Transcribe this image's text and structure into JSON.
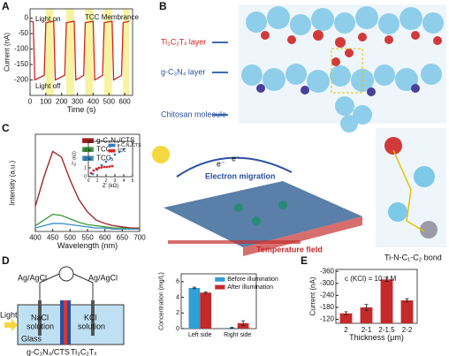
{
  "panels": {
    "labels": [
      "A",
      "B",
      "C",
      "D",
      "E"
    ]
  },
  "diagram_b": {
    "layer1": "Ti₃C₂Tₓ layer",
    "layer2": "g-C₃N₄ layer",
    "molecule": "Chitosan molecule"
  },
  "diagram_c": {
    "electron1": "e⁻",
    "electron2": "e⁻",
    "migration": "Electron migration",
    "field": "Temperature field",
    "bond": "Ti-N-C₁-C₂ bond"
  },
  "diagram_d": {
    "electrode_left": "Ag/AgCl",
    "electrode_right": "Ag/AgCl",
    "left_solution": [
      "NaCl",
      "solution"
    ],
    "right_solution": [
      "KCl",
      "solution"
    ],
    "light": "Light",
    "glass": "Glass",
    "membrane1": "g-C₃N₄/CTS",
    "membrane2": "Ti₃C₂Tₓ"
  },
  "chart_data": [
    {
      "type": "line",
      "xlabel": "Time (s)",
      "ylabel": "Current (nA)",
      "color": "#d62020",
      "annotations": [
        "Light on",
        "Light off",
        "TCC Membrance"
      ],
      "light_on": [
        [
          100,
          150
        ],
        [
          230,
          280
        ],
        [
          350,
          400
        ],
        [
          470,
          520
        ],
        [
          590,
          630
        ]
      ],
      "shade_color": "#f7f3a0",
      "x": [
        0,
        20,
        30,
        90,
        100,
        150,
        160,
        220,
        230,
        280,
        290,
        340,
        350,
        400,
        410,
        460,
        470,
        520,
        530,
        580,
        590,
        630
      ],
      "values": [
        -10,
        -12,
        -200,
        -185,
        -15,
        -10,
        -200,
        -185,
        -15,
        -10,
        -200,
        -185,
        -15,
        -10,
        -200,
        -185,
        -15,
        -10,
        -200,
        -185,
        -15,
        -10
      ],
      "xlim": [
        0,
        650
      ],
      "xticks": [
        0,
        100,
        200,
        300,
        400,
        500,
        600
      ],
      "ylim": [
        -250,
        30
      ],
      "yticks": [
        -200,
        -150,
        -100,
        -50,
        0
      ]
    },
    {
      "type": "line",
      "xlabel": "Wavelength (nm)",
      "ylabel": "Intensity (a.u.)",
      "legend": "upper right",
      "x": [
        400,
        425,
        450,
        475,
        500,
        525,
        550,
        575,
        600,
        625,
        650,
        675,
        700
      ],
      "series": [
        {
          "name": "g-C₃N₄/CTS",
          "color": "#9b1c1c",
          "values": [
            0.22,
            0.48,
            0.7,
            0.65,
            0.45,
            0.28,
            0.17,
            0.1,
            0.07,
            0.05,
            0.04,
            0.03,
            0.03
          ]
        },
        {
          "name": "TCC₁",
          "color": "#3a9a3a",
          "values": [
            0.05,
            0.1,
            0.15,
            0.14,
            0.11,
            0.08,
            0.06,
            0.05,
            0.04,
            0.03,
            0.03,
            0.02,
            0.02
          ]
        },
        {
          "name": "TCC₂",
          "color": "#3a8fc8",
          "values": [
            0.03,
            0.05,
            0.07,
            0.07,
            0.06,
            0.05,
            0.04,
            0.03,
            0.03,
            0.02,
            0.02,
            0.02,
            0.02
          ]
        }
      ],
      "xlim": [
        400,
        700
      ],
      "xticks": [
        400,
        450,
        500,
        550,
        600,
        650,
        700
      ],
      "ylim": [
        0,
        0.85
      ]
    },
    {
      "type": "scatter",
      "xlabel": "Z' (kΩ)",
      "ylabel": "-Z'' (kΩ)",
      "legend": "upper right",
      "series": [
        {
          "name": "g-C₃N₄/CTS",
          "color": "#2a7fc1",
          "x": [
            0.5,
            1,
            1.5,
            2,
            2.5,
            3,
            3.5,
            4
          ],
          "values": [
            0.3,
            0.8,
            1.3,
            1.7,
            2.1,
            2.5,
            2.8,
            3.1
          ]
        },
        {
          "name": "TCC",
          "color": "#d62020",
          "x": [
            0.3,
            0.6,
            0.9,
            1.2,
            1.5,
            1.8,
            2.1,
            2.4,
            2.7
          ],
          "values": [
            0.4,
            0.7,
            0.9,
            1,
            1.05,
            1.1,
            1.1,
            1.15,
            1.2
          ]
        }
      ],
      "xlim": [
        0,
        5
      ],
      "xticks": [
        0,
        1,
        2,
        3,
        4,
        5
      ],
      "ylim": [
        0,
        4
      ],
      "yticks": [
        0,
        1,
        2,
        3
      ]
    },
    {
      "type": "bar",
      "ylabel": "Concentration (mg/L)",
      "legend": "upper right",
      "categories": [
        "Left side",
        "Right side"
      ],
      "series": [
        {
          "name": "Before illumination",
          "color": "#2f9fd6",
          "values": [
            5.2,
            0.1
          ],
          "errors": [
            0.1,
            0.05
          ]
        },
        {
          "name": "After illumination",
          "color": "#c42a2a",
          "values": [
            4.6,
            0.7
          ],
          "errors": [
            0.1,
            0.3
          ]
        }
      ],
      "ylim": [
        0,
        7
      ],
      "yticks": [
        0,
        2,
        4,
        6
      ]
    },
    {
      "type": "bar",
      "xlabel": "Thickness (μm)",
      "ylabel": "Current (nA)",
      "annotations": [
        "c (KCl) = 10⁻² M"
      ],
      "categories": [
        "2",
        "2-1",
        "2-1.5",
        "2-2"
      ],
      "series": [
        {
          "color": "#c42a2a",
          "values": [
            -150,
            -180,
            -320,
            -215
          ],
          "errors": [
            8,
            15,
            10,
            8
          ]
        }
      ],
      "ylim": [
        -100,
        -370
      ],
      "yticks": [
        -120,
        -180,
        -240,
        -300,
        -360
      ]
    }
  ]
}
